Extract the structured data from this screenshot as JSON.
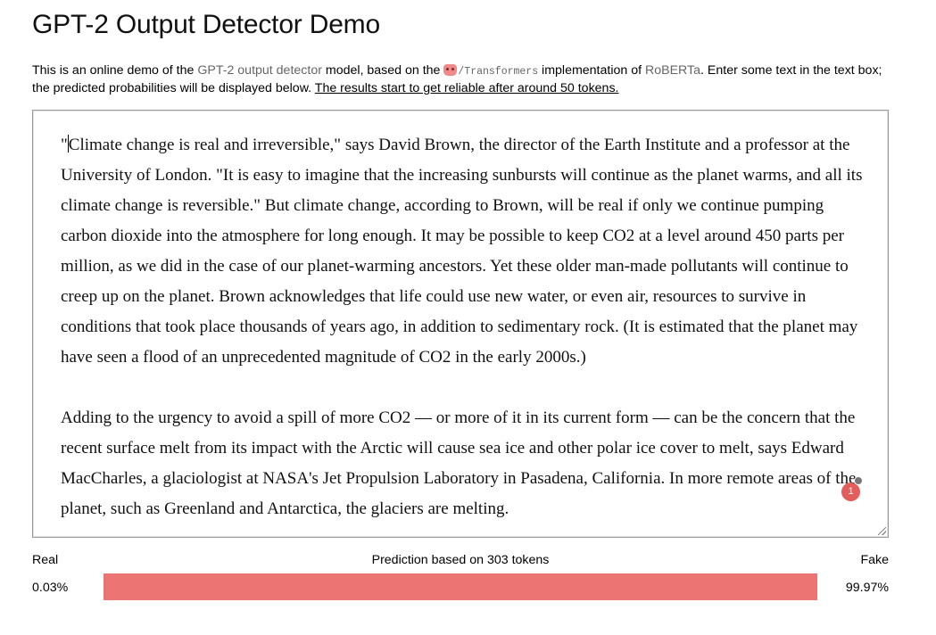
{
  "header": {
    "title": "GPT-2 Output Detector Demo"
  },
  "intro": {
    "part1": "This is an online demo of the ",
    "link_detector": "GPT-2 output detector",
    "part2": " model, based on the ",
    "emoji_icon": "hugging-face-icon",
    "link_transformers": "/Transformers",
    "part3": " implementation of ",
    "link_roberta": "RoBERTa",
    "part4": ". Enter some text in the text box; the predicted probabilities will be displayed below. ",
    "note": "The results start to get reliable after around 50 tokens."
  },
  "textbox": {
    "paragraph1_first_char": "\"",
    "paragraph1": "Climate change is real and irreversible,\" says David Brown, the director of the Earth Institute and a professor at the University of London. \"It is easy to imagine that the increasing sunbursts will continue as the planet warms, and all its climate change is reversible.\" But climate change, according to Brown, will be real if only we continue pumping carbon dioxide into the atmosphere for long enough. It may be possible to keep CO2 at a level around 450 parts per million, as we did in the case of our planet-warming ancestors. Yet these older man-made pollutants will continue to creep up on the planet. Brown acknowledges that life could use new water, or even air, resources to survive in conditions that took place thousands of years ago, in addition to sedimentary rock. (It is estimated that the planet may have seen a flood of an unprecedented magnitude of CO2 in the early 2000s.)",
    "paragraph2": "Adding to the urgency to avoid a spill of more CO2 — or more of it in its current form — can be the concern that the recent surface melt from its impact with the Arctic will cause sea ice and other polar ice cover to melt, says Edward MacCharles, a glaciologist at NASA's Jet Propulsion Laboratory in Pasadena, California. In more remote areas of the planet, such as Greenland and Antarctica, the glaciers are melting."
  },
  "grammar_badge": {
    "count": "1",
    "color": "#e35d5b"
  },
  "prediction": {
    "real_label": "Real",
    "fake_label": "Fake",
    "summary": "Prediction based on 303 tokens",
    "real_value": "0.03%",
    "fake_value": "99.97%",
    "real_fraction": 0.0003,
    "fake_fraction": 0.9997,
    "real_color": "#4ea6e0",
    "fake_color": "#ec7574"
  }
}
